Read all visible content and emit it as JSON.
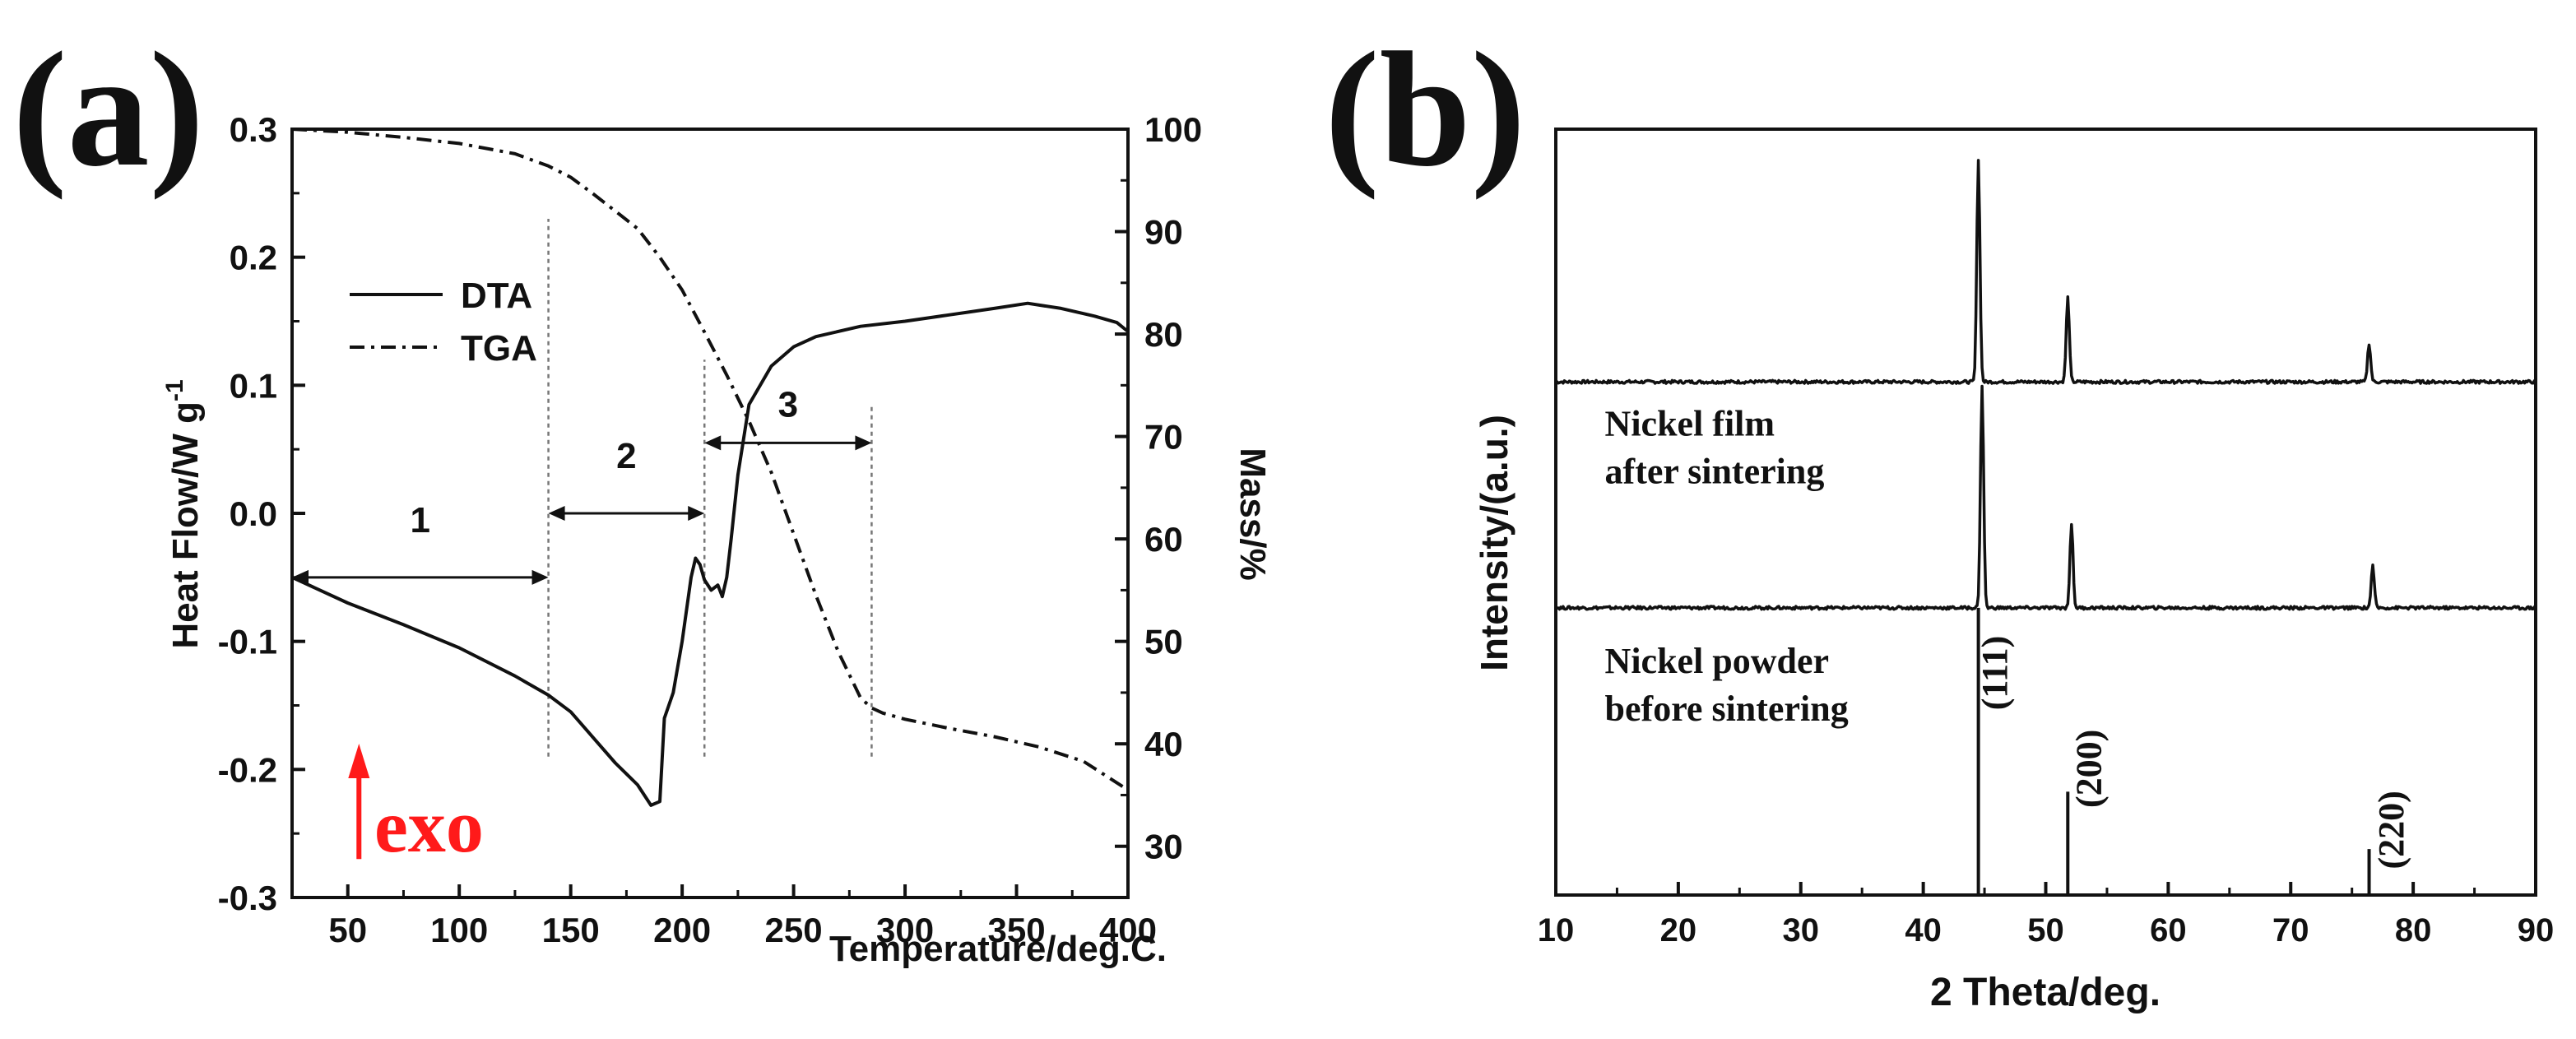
{
  "panels": {
    "a": {
      "label": "(a)"
    },
    "b": {
      "label": "(b)"
    }
  },
  "colors": {
    "exo_arrow": "#ff1a1a",
    "ink": "#111111"
  },
  "chart_data": [
    {
      "panel": "a",
      "type": "line",
      "xlabel": "Temperature/deg.C.",
      "ylabel": "Heat Flow/W g",
      "ylabel_superscript": "-1",
      "y2label": "Mass/%",
      "xlim": [
        25,
        400
      ],
      "ylim": [
        -0.3,
        0.3
      ],
      "y2lim": [
        25,
        100
      ],
      "xticks": [
        "50",
        "100",
        "150",
        "200",
        "250",
        "300",
        "350",
        "400"
      ],
      "yticks": [
        "-0.3",
        "-0.2",
        "-0.1",
        "0.0",
        "0.1",
        "0.2",
        "0.3"
      ],
      "y2ticks": [
        "30",
        "40",
        "50",
        "60",
        "70",
        "80",
        "90",
        "100"
      ],
      "legend": {
        "position": "upper-left",
        "entries": [
          "DTA",
          "TGA"
        ]
      },
      "series": [
        {
          "name": "DTA",
          "axis": "left",
          "style": "solid",
          "x": [
            25,
            50,
            75,
            100,
            125,
            140,
            150,
            160,
            170,
            180,
            186,
            190,
            192,
            196,
            200,
            204,
            206,
            208,
            210,
            213,
            216,
            218,
            220,
            222,
            225,
            230,
            240,
            250,
            260,
            280,
            300,
            320,
            340,
            355,
            370,
            385,
            395,
            400
          ],
          "y": [
            -0.05,
            -0.07,
            -0.087,
            -0.105,
            -0.127,
            -0.142,
            -0.155,
            -0.175,
            -0.195,
            -0.212,
            -0.228,
            -0.225,
            -0.16,
            -0.14,
            -0.1,
            -0.05,
            -0.035,
            -0.04,
            -0.052,
            -0.06,
            -0.056,
            -0.065,
            -0.05,
            -0.02,
            0.03,
            0.085,
            0.115,
            0.13,
            0.138,
            0.146,
            0.15,
            0.155,
            0.16,
            0.164,
            0.16,
            0.154,
            0.149,
            0.142
          ]
        },
        {
          "name": "TGA",
          "axis": "right",
          "style": "dash-dot",
          "x": [
            25,
            50,
            75,
            100,
            125,
            140,
            150,
            160,
            170,
            180,
            190,
            200,
            210,
            220,
            230,
            240,
            250,
            260,
            270,
            280,
            285,
            290,
            300,
            320,
            340,
            360,
            380,
            400
          ],
          "y": [
            100,
            99.7,
            99.2,
            98.6,
            97.6,
            96.4,
            95.3,
            93.7,
            92.0,
            90.3,
            87.5,
            84.3,
            80.2,
            76.0,
            71.5,
            66.5,
            60.5,
            54.5,
            49.0,
            44.5,
            43.5,
            43.0,
            42.4,
            41.5,
            40.7,
            39.7,
            38.3,
            35.5
          ]
        }
      ],
      "regions": [
        {
          "label": "1",
          "from": 25,
          "to": 140,
          "arrow_y": -0.05,
          "label_y": -0.005
        },
        {
          "label": "2",
          "from": 140,
          "to": 210,
          "arrow_y": 0.0,
          "label_y": 0.045
        },
        {
          "label": "3",
          "from": 210,
          "to": 285,
          "arrow_y": 0.055,
          "label_y": 0.085
        }
      ],
      "divider_lines": [
        {
          "x": 140,
          "from": -0.19,
          "to": 0.23
        },
        {
          "x": 210,
          "from": -0.19,
          "to": 0.12
        },
        {
          "x": 285,
          "from": -0.19,
          "to": 0.085
        }
      ],
      "annotation": {
        "text": "exo",
        "arrow": "up",
        "x": 55,
        "y_from": -0.27,
        "y_to": -0.185
      }
    },
    {
      "panel": "b",
      "type": "line",
      "xlabel": "2 Theta/deg.",
      "ylabel": "Intensity/(a.u.)",
      "xlim": [
        10,
        90
      ],
      "ylim": [
        0,
        1
      ],
      "xticks": [
        "10",
        "20",
        "30",
        "40",
        "50",
        "60",
        "70",
        "80",
        "90"
      ],
      "series": [
        {
          "name": "Nickel film after sintering",
          "baseline": 0.67,
          "peaks": [
            {
              "x": 44.5,
              "height": 0.29
            },
            {
              "x": 51.8,
              "height": 0.11
            },
            {
              "x": 76.4,
              "height": 0.05
            }
          ]
        },
        {
          "name": "Nickel powder before sintering",
          "baseline": 0.375,
          "peaks": [
            {
              "x": 44.8,
              "height": 0.29
            },
            {
              "x": 52.1,
              "height": 0.11
            },
            {
              "x": 76.7,
              "height": 0.055
            }
          ]
        }
      ],
      "series_labels": [
        {
          "lines": [
            "Nickel film",
            "after sintering"
          ],
          "x": 14,
          "y": 0.6
        },
        {
          "lines": [
            "Nickel powder",
            "before sintering"
          ],
          "x": 14,
          "y": 0.29
        }
      ],
      "reference_peaks": [
        {
          "x": 44.5,
          "height": 0.375,
          "label": "(111)",
          "label_x": 46.8,
          "label_y": 0.29
        },
        {
          "x": 51.8,
          "height": 0.135,
          "label": "(200)",
          "label_x": 54.5,
          "label_y": 0.165
        },
        {
          "x": 76.4,
          "height": 0.06,
          "label": "(220)",
          "label_x": 79.2,
          "label_y": 0.085
        }
      ]
    }
  ]
}
